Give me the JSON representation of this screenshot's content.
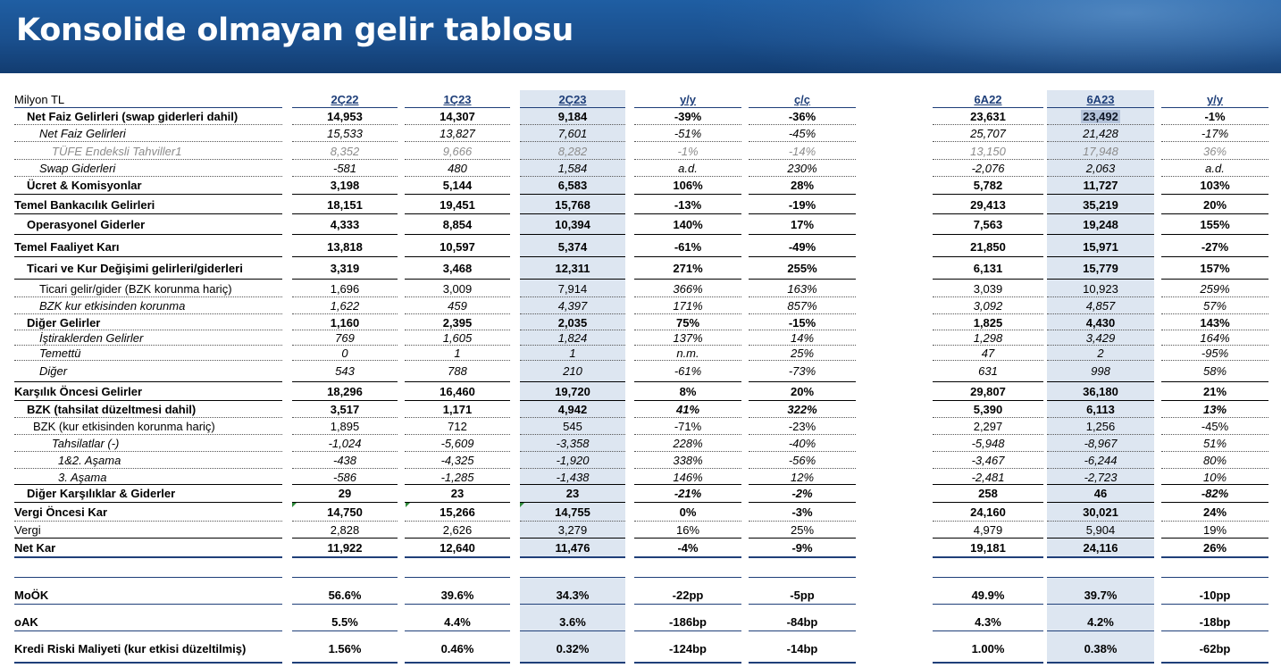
{
  "title": "Konsolide olmayan gelir tablosu",
  "columns": [
    "Milyon TL",
    "2Ç22",
    "1Ç23",
    "2Ç23",
    "y/y",
    "ç/ç",
    "6A22",
    "6A23",
    "y/y"
  ],
  "rows": [
    {
      "label": "Net Faiz Gelirleri (swap giderleri dahil)",
      "vals": [
        "14,953",
        "14,307",
        "9,184",
        "-39%",
        "-36%",
        "23,631",
        "23,492",
        "-1%"
      ]
    },
    {
      "label": "Net Faiz Gelirleri",
      "vals": [
        "15,533",
        "13,827",
        "7,601",
        "-51%",
        "-45%",
        "25,707",
        "21,428",
        "-17%"
      ]
    },
    {
      "label": "TÜFE Endeksli Tahviller1",
      "vals": [
        "8,352",
        "9,666",
        "8,282",
        "-1%",
        "-14%",
        "13,150",
        "17,948",
        "36%"
      ]
    },
    {
      "label": "Swap Giderleri",
      "vals": [
        "-581",
        "480",
        "1,584",
        "a.d.",
        "230%",
        "-2,076",
        "2,063",
        "a.d."
      ]
    },
    {
      "label": "Ücret & Komisyonlar",
      "vals": [
        "3,198",
        "5,144",
        "6,583",
        "106%",
        "28%",
        "5,782",
        "11,727",
        "103%"
      ]
    },
    {
      "label": "Temel Bankacılık Gelirleri",
      "vals": [
        "18,151",
        "19,451",
        "15,768",
        "-13%",
        "-19%",
        "29,413",
        "35,219",
        "20%"
      ]
    },
    {
      "label": "Operasyonel Giderler",
      "vals": [
        "4,333",
        "8,854",
        "10,394",
        "140%",
        "17%",
        "7,563",
        "19,248",
        "155%"
      ]
    },
    {
      "label": "Temel Faaliyet Karı",
      "vals": [
        "13,818",
        "10,597",
        "5,374",
        "-61%",
        "-49%",
        "21,850",
        "15,971",
        "-27%"
      ]
    },
    {
      "label": "Ticari ve Kur Değişimi gelirleri/giderleri",
      "vals": [
        "3,319",
        "3,468",
        "12,311",
        "271%",
        "255%",
        "6,131",
        "15,779",
        "157%"
      ]
    },
    {
      "label": "Ticari gelir/gider (BZK korunma hariç)",
      "vals": [
        "1,696",
        "3,009",
        "7,914",
        "366%",
        "163%",
        "3,039",
        "10,923",
        "259%"
      ]
    },
    {
      "label": "BZK kur etkisinden korunma",
      "vals": [
        "1,622",
        "459",
        "4,397",
        "171%",
        "857%",
        "3,092",
        "4,857",
        "57%"
      ]
    },
    {
      "label": "Diğer Gelirler",
      "vals": [
        "1,160",
        "2,395",
        "2,035",
        "75%",
        "-15%",
        "1,825",
        "4,430",
        "143%"
      ]
    },
    {
      "label": "İştiraklerden Gelirler",
      "vals": [
        "769",
        "1,605",
        "1,824",
        "137%",
        "14%",
        "1,298",
        "3,429",
        "164%"
      ]
    },
    {
      "label": "Temettü",
      "vals": [
        "0",
        "1",
        "1",
        "n.m.",
        "25%",
        "47",
        "2",
        "-95%"
      ]
    },
    {
      "label": "Diğer",
      "vals": [
        "543",
        "788",
        "210",
        "-61%",
        "-73%",
        "631",
        "998",
        "58%"
      ]
    },
    {
      "label": "Karşılık Öncesi Gelirler",
      "vals": [
        "18,296",
        "16,460",
        "19,720",
        "8%",
        "20%",
        "29,807",
        "36,180",
        "21%"
      ]
    },
    {
      "label": "BZK (tahsilat düzeltmesi dahil)",
      "vals": [
        "3,517",
        "1,171",
        "4,942",
        "41%",
        "322%",
        "5,390",
        "6,113",
        "13%"
      ]
    },
    {
      "label": "BZK (kur etkisinden korunma hariç)",
      "vals": [
        "1,895",
        "712",
        "545",
        "-71%",
        "-23%",
        "2,297",
        "1,256",
        "-45%"
      ]
    },
    {
      "label": "Tahsilatlar (-)",
      "vals": [
        "-1,024",
        "-5,609",
        "-3,358",
        "228%",
        "-40%",
        "-5,948",
        "-8,967",
        "51%"
      ]
    },
    {
      "label": "1&2. Aşama",
      "vals": [
        "-438",
        "-4,325",
        "-1,920",
        "338%",
        "-56%",
        "-3,467",
        "-6,244",
        "80%"
      ]
    },
    {
      "label": "3. Aşama",
      "vals": [
        "-586",
        "-1,285",
        "-1,438",
        "146%",
        "12%",
        "-2,481",
        "-2,723",
        "10%"
      ]
    },
    {
      "label": "Diğer Karşılıklar & Giderler",
      "vals": [
        "29",
        "23",
        "23",
        "-21%",
        "-2%",
        "258",
        "46",
        "-82%"
      ]
    },
    {
      "label": "Vergi Öncesi Kar",
      "vals": [
        "14,750",
        "15,266",
        "14,755",
        "0%",
        "-3%",
        "24,160",
        "30,021",
        "24%"
      ]
    },
    {
      "label": "Vergi",
      "vals": [
        "2,828",
        "2,626",
        "3,279",
        "16%",
        "25%",
        "4,979",
        "5,904",
        "19%"
      ]
    },
    {
      "label": "Net Kar",
      "vals": [
        "11,922",
        "12,640",
        "11,476",
        "-4%",
        "-9%",
        "19,181",
        "24,116",
        "26%"
      ]
    },
    {
      "label": "MoÖK",
      "vals": [
        "56.6%",
        "39.6%",
        "34.3%",
        "-22pp",
        "-5pp",
        "49.9%",
        "39.7%",
        "-10pp"
      ]
    },
    {
      "label": "oAK",
      "vals": [
        "5.5%",
        "4.4%",
        "3.6%",
        "-186bp",
        "-84bp",
        "4.3%",
        "4.2%",
        "-18bp"
      ]
    },
    {
      "label": "Kredi Riski Maliyeti (kur etkisi düzeltilmiş)",
      "vals": [
        "1.56%",
        "0.46%",
        "0.32%",
        "-124bp",
        "-14bp",
        "1.00%",
        "0.38%",
        "-62bp"
      ]
    }
  ],
  "colors": {
    "header_blue": "#1f5ea3",
    "column_highlight": "#dde6f1",
    "rule": "#1f3f79",
    "grey_text": "#8c8c8c"
  }
}
